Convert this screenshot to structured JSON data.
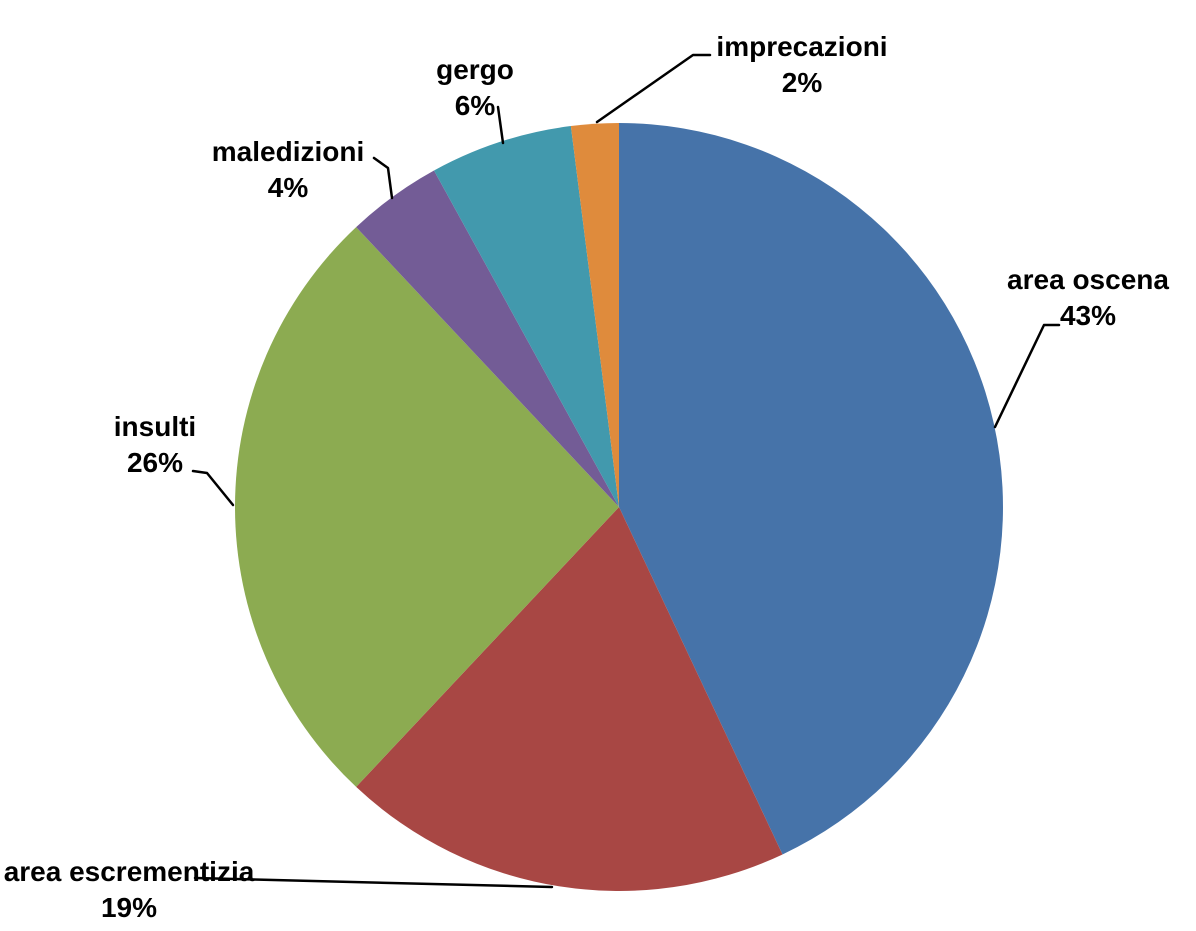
{
  "chart_data": {
    "type": "pie",
    "title": "",
    "legend": "none",
    "label_style": "outside-with-leader-lines",
    "start_angle_deg": 0,
    "direction": "clockwise",
    "background_color": "#ffffff",
    "slices": [
      {
        "id": "area-oscena",
        "label": "area oscena",
        "value": 43,
        "pct_label": "43%",
        "color": "#4673A9"
      },
      {
        "id": "area-escrementizia",
        "label": "area escrementizia",
        "value": 19,
        "pct_label": "19%",
        "color": "#A84744"
      },
      {
        "id": "insulti",
        "label": "insulti",
        "value": 26,
        "pct_label": "26%",
        "color": "#8CAB51"
      },
      {
        "id": "maledizioni",
        "label": "maledizioni",
        "value": 4,
        "pct_label": "4%",
        "color": "#735C96"
      },
      {
        "id": "gergo",
        "label": "gergo",
        "value": 6,
        "pct_label": "6%",
        "color": "#4299AD"
      },
      {
        "id": "imprecazioni",
        "label": "imprecazioni",
        "value": 2,
        "pct_label": "2%",
        "color": "#DF8B3C"
      }
    ]
  }
}
